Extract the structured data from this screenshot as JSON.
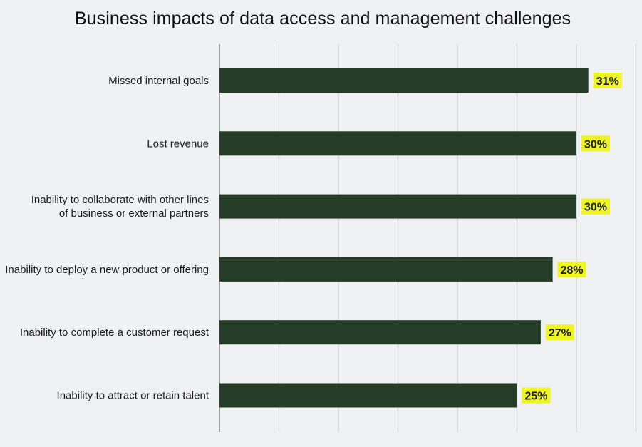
{
  "chart_data": {
    "type": "bar",
    "orientation": "horizontal",
    "title": "Business impacts of data access and management challenges",
    "categories": [
      "Missed internal goals",
      "Lost revenue",
      "Inability to collaborate with other lines of business or external partners",
      "Inability to deploy a new product or offering",
      "Inability to complete a customer request",
      "Inability to attract or retain talent"
    ],
    "category_lines": [
      [
        "Missed internal goals"
      ],
      [
        "Lost revenue"
      ],
      [
        "Inability to collaborate with other lines",
        "of business or external partners"
      ],
      [
        "Inability to deploy a new product or offering"
      ],
      [
        "Inability to complete a customer request"
      ],
      [
        "Inability to attract or retain talent"
      ]
    ],
    "values": [
      31,
      30,
      30,
      28,
      27,
      25
    ],
    "value_labels": [
      "31%",
      "30%",
      "30%",
      "28%",
      "27%",
      "25%"
    ],
    "xlim": [
      0,
      35
    ],
    "grid": true,
    "bar_color": "#253d26",
    "label_highlight_color": "#eef520",
    "background_color": "#f0f1f3"
  }
}
